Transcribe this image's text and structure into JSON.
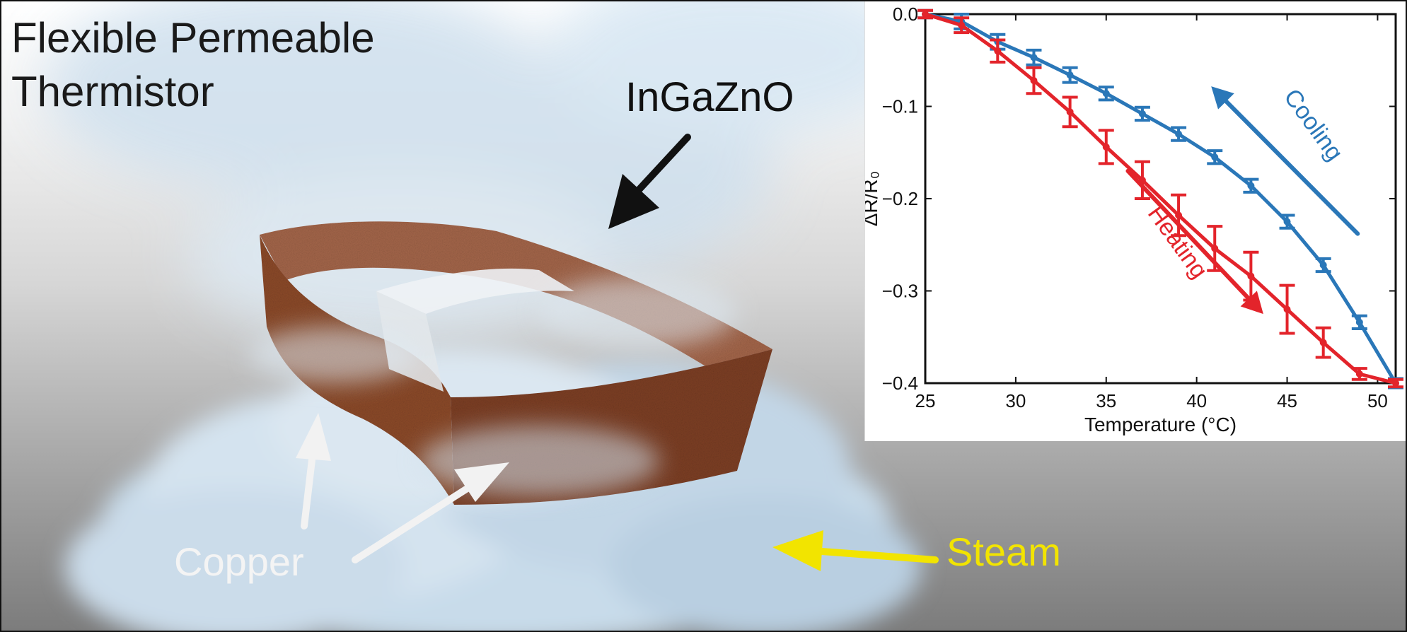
{
  "title_line1": "Flexible Permeable",
  "title_line2": "Thermistor",
  "labels": {
    "ingazno": "InGaZnO",
    "copper": "Copper",
    "steam": "Steam"
  },
  "colors": {
    "copper": "#9c5b3a",
    "film": "#e7ecf0",
    "steam": "#cfe0ee",
    "steam_label": "#f2e400",
    "arrow_dark": "#111111",
    "arrow_light": "#f2f2f2",
    "heating": "#e3242b",
    "cooling": "#2a77b8"
  },
  "chart_data": {
    "type": "line",
    "xlabel": "Temperature (°C)",
    "ylabel": "ΔR/R₀",
    "xlim": [
      25,
      51
    ],
    "ylim": [
      -0.4,
      0.0
    ],
    "xticks": [
      25,
      30,
      35,
      40,
      45,
      50
    ],
    "yticks": [
      0.0,
      -0.1,
      -0.2,
      -0.3,
      -0.4
    ],
    "ytick_labels": [
      "0.0",
      "−0.1",
      "−0.2",
      "−0.3",
      "−0.4"
    ],
    "grid": false,
    "series": [
      {
        "name": "Cooling",
        "color": "#2a77b8",
        "x": [
          25,
          27,
          29,
          31,
          33,
          35,
          37,
          39,
          41,
          43,
          45,
          47,
          49,
          51
        ],
        "y": [
          0.0,
          -0.008,
          -0.03,
          -0.047,
          -0.066,
          -0.086,
          -0.108,
          -0.13,
          -0.155,
          -0.186,
          -0.225,
          -0.272,
          -0.334,
          -0.4
        ],
        "err": [
          0.004,
          0.008,
          0.008,
          0.008,
          0.008,
          0.007,
          0.007,
          0.007,
          0.007,
          0.007,
          0.007,
          0.007,
          0.007,
          0.005
        ]
      },
      {
        "name": "Heating",
        "color": "#e3242b",
        "x": [
          25,
          27,
          29,
          31,
          33,
          35,
          37,
          39,
          41,
          43,
          45,
          47,
          49,
          51
        ],
        "y": [
          0.0,
          -0.012,
          -0.04,
          -0.072,
          -0.106,
          -0.144,
          -0.18,
          -0.218,
          -0.254,
          -0.284,
          -0.32,
          -0.356,
          -0.39,
          -0.4
        ],
        "err": [
          0.004,
          0.008,
          0.012,
          0.014,
          0.016,
          0.018,
          0.02,
          0.022,
          0.024,
          0.026,
          0.026,
          0.016,
          0.006,
          0.004
        ]
      }
    ],
    "annotations": [
      {
        "text": "Cooling",
        "color": "#2a77b8",
        "direction": "up-left"
      },
      {
        "text": "Heating",
        "color": "#e3242b",
        "direction": "down-right"
      }
    ]
  }
}
